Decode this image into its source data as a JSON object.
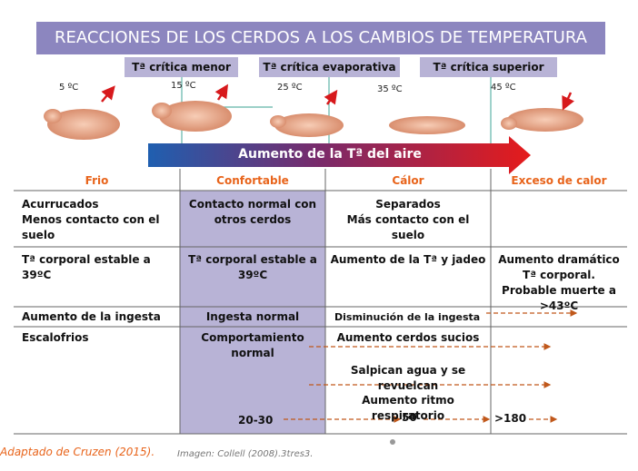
{
  "title": "REACCIONES DE LOS CERDOS A LOS CAMBIOS DE TEMPERATURA",
  "thresholds": [
    "Tª crítica menor",
    "Tª crítica evaporativa",
    "Tª crítica superior"
  ],
  "temperatures": [
    "5 ºC",
    "15 ºC",
    "25 ºC",
    "35 ºC",
    "45 ºC"
  ],
  "air_arrow": "Aumento de la Tª del aire",
  "table": {
    "headers": [
      "Frio",
      "Confortable",
      "Cálor",
      "Exceso de calor"
    ],
    "rows": [
      [
        [
          "Acurrucados",
          "Menos contacto con el suelo"
        ],
        [
          "Contacto normal con otros cerdos"
        ],
        [
          "Separados",
          "Más contacto con el suelo"
        ],
        []
      ],
      [
        [
          "Tª corporal estable a 39ºC"
        ],
        [
          "Tª corporal estable a 39ºC"
        ],
        [
          "Aumento de la Tª y jadeo"
        ],
        [
          "Aumento dramático Tª corporal. Probable muerte a >43ºC"
        ]
      ],
      [
        [
          "Aumento de la ingesta"
        ],
        [
          "Ingesta normal"
        ],
        [
          "Disminución de la ingesta"
        ],
        []
      ],
      [
        [
          "Escalofrios"
        ],
        [
          "Comportamiento normal",
          "20-30"
        ],
        [
          "Aumento cerdos sucios",
          "Salpican agua y se revuelcan",
          "Aumento ritmo respiratorio",
          "50"
        ],
        [
          ">180"
        ]
      ]
    ]
  },
  "footer": {
    "source": "Adaptado de Cruzen (2015).",
    "image_credit": "Imagen: Collell (2008).3tres3."
  }
}
